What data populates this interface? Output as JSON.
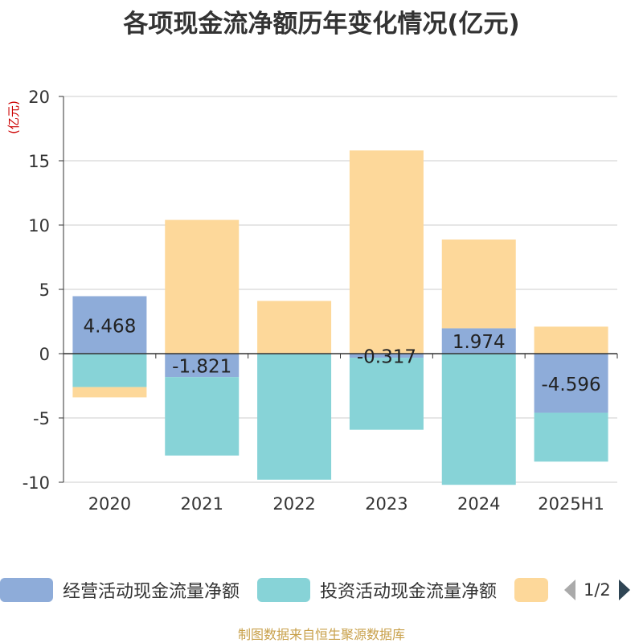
{
  "title": "各项现金流净额历年变化情况(亿元)",
  "source_note": "制图数据来自恒生聚源数据库",
  "pager": {
    "text": "1/2",
    "prev_icon": "triangle-left-icon",
    "next_icon": "triangle-right-icon"
  },
  "legend": [
    {
      "label": "经营活动现金流量净额",
      "color": "#8eacd9"
    },
    {
      "label": "投资活动现金流量净额",
      "color": "#87d3d7"
    },
    {
      "label": "",
      "color": "#fdd89a"
    }
  ],
  "chart_data": {
    "type": "bar",
    "stacked": true,
    "categories": [
      "2020",
      "2021",
      "2022",
      "2023",
      "2024",
      "2025H1"
    ],
    "ylabel": "(亿元)",
    "ylim": [
      -10,
      20
    ],
    "yticks": [
      -10,
      -5,
      0,
      5,
      10,
      15,
      20
    ],
    "grid": true,
    "legend_position": "bottom",
    "series": [
      {
        "name": "经营活动现金流量净额",
        "color": "#8eacd9",
        "values": [
          4.468,
          -1.821,
          0.0,
          -0.317,
          1.974,
          -4.596
        ],
        "labels": [
          "4.468",
          "-1.821",
          "",
          "-0.317",
          "1.974",
          "-4.596"
        ]
      },
      {
        "name": "投资活动现金流量净额",
        "color": "#87d3d7",
        "values": [
          -2.6,
          -6.1,
          -9.8,
          -5.6,
          -10.2,
          -3.8
        ]
      },
      {
        "color": "#fdd89a",
        "values": [
          -0.8,
          10.4,
          4.1,
          15.8,
          6.9,
          2.1
        ]
      }
    ]
  }
}
